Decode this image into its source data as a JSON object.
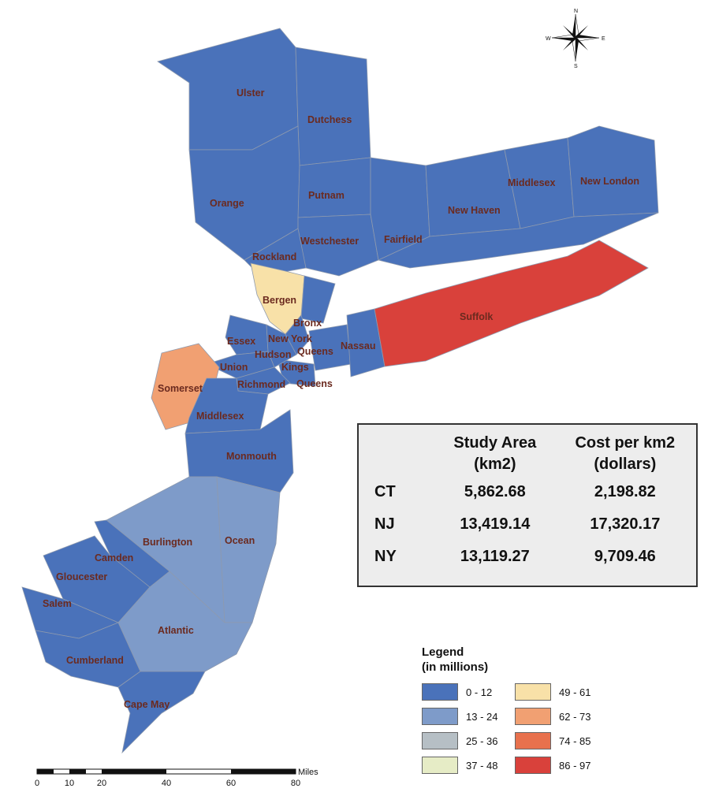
{
  "colors": {
    "c0_12": "#4a72ba",
    "c13_24": "#7e9bc9",
    "c25_36": "#b6bfc5",
    "c37_48": "#e6ecc6",
    "c49_61": "#f8e1a8",
    "c62_73": "#f1a072",
    "c74_85": "#e8714d",
    "c86_97": "#d9413b",
    "label": "#6b2a1f",
    "border": "#8e9aae"
  },
  "counties": [
    {
      "name": "Ulster",
      "range": "0 - 12"
    },
    {
      "name": "Dutchess",
      "range": "0 - 12"
    },
    {
      "name": "Orange",
      "range": "0 - 12"
    },
    {
      "name": "Putnam",
      "range": "0 - 12"
    },
    {
      "name": "Westchester",
      "range": "0 - 12"
    },
    {
      "name": "Rockland",
      "range": "0 - 12"
    },
    {
      "name": "Fairfield",
      "range": "0 - 12"
    },
    {
      "name": "New Haven",
      "range": "0 - 12"
    },
    {
      "name": "Middlesex",
      "state": "CT",
      "range": "0 - 12"
    },
    {
      "name": "New London",
      "range": "0 - 12"
    },
    {
      "name": "Bergen",
      "range": "49 - 61"
    },
    {
      "name": "Bronx",
      "range": "0 - 12"
    },
    {
      "name": "New York",
      "range": "0 - 12"
    },
    {
      "name": "Essex",
      "range": "0 - 12"
    },
    {
      "name": "Hudson",
      "range": "0 - 12"
    },
    {
      "name": "Queens",
      "range": "0 - 12"
    },
    {
      "name": "Nassau",
      "range": "0 - 12"
    },
    {
      "name": "Suffolk",
      "range": "86 - 97"
    },
    {
      "name": "Union",
      "range": "0 - 12"
    },
    {
      "name": "Kings",
      "range": "0 - 12"
    },
    {
      "name": "Somerset",
      "range": "62 - 73"
    },
    {
      "name": "Richmond",
      "range": "0 - 12"
    },
    {
      "name": "Queens",
      "label": "second label",
      "range": "0 - 12"
    },
    {
      "name": "Middlesex",
      "state": "NJ",
      "range": "0 - 12"
    },
    {
      "name": "Monmouth",
      "range": "0 - 12"
    },
    {
      "name": "Burlington",
      "range": "13 - 24"
    },
    {
      "name": "Ocean",
      "range": "13 - 24"
    },
    {
      "name": "Camden",
      "range": "0 - 12"
    },
    {
      "name": "Gloucester",
      "range": "0 - 12"
    },
    {
      "name": "Salem",
      "range": "0 - 12"
    },
    {
      "name": "Atlantic",
      "range": "13 - 24"
    },
    {
      "name": "Cumberland",
      "range": "0 - 12"
    },
    {
      "name": "Cape May",
      "range": "0 - 12"
    }
  ],
  "stats_table": {
    "headers": [
      {
        "line1": "Study Area",
        "line2": "(km2)"
      },
      {
        "line1": "Cost per km2",
        "line2": "(dollars)"
      }
    ],
    "rows": [
      {
        "state": "CT",
        "area": "5,862.68",
        "cost": "2,198.82"
      },
      {
        "state": "NJ",
        "area": "13,419.14",
        "cost": "17,320.17"
      },
      {
        "state": "NY",
        "area": "13,119.27",
        "cost": "9,709.46"
      }
    ]
  },
  "legend": {
    "title_line1": "Legend",
    "title_line2": "(in millions)",
    "items": [
      {
        "label": "0 - 12",
        "color": "#4a72ba"
      },
      {
        "label": "49 - 61",
        "color": "#f8e1a8"
      },
      {
        "label": "13 - 24",
        "color": "#7e9bc9"
      },
      {
        "label": "62 - 73",
        "color": "#f1a072"
      },
      {
        "label": "25 - 36",
        "color": "#b6bfc5"
      },
      {
        "label": "74 - 85",
        "color": "#e8714d"
      },
      {
        "label": "37 - 48",
        "color": "#e6ecc6"
      },
      {
        "label": "86 - 97",
        "color": "#d9413b"
      }
    ]
  },
  "scale_bar": {
    "unit": "Miles",
    "ticks": [
      "0",
      "10",
      "20",
      "40",
      "60",
      "80"
    ]
  },
  "compass": {
    "icon": "north-arrow-icon",
    "n": "N",
    "s": "S",
    "e": "E",
    "w": "W"
  }
}
